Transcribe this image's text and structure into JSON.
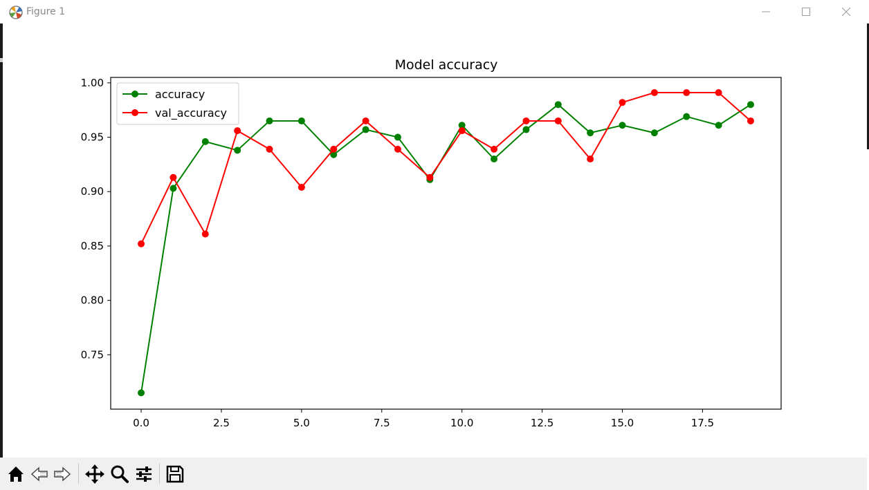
{
  "window": {
    "title": "Figure 1",
    "icons": [
      "app-icon",
      "minimize-icon",
      "maximize-icon",
      "close-icon"
    ]
  },
  "toolbar": {
    "buttons": [
      {
        "name": "home-icon"
      },
      {
        "name": "back-icon"
      },
      {
        "name": "forward-icon"
      },
      {
        "name": "pan-icon"
      },
      {
        "name": "zoom-icon"
      },
      {
        "name": "configure-subplots-icon"
      },
      {
        "name": "save-icon"
      }
    ]
  },
  "chart_data": {
    "type": "line",
    "title": "Model accuracy",
    "xlabel": "",
    "ylabel": "",
    "xlim": [
      -0.95,
      19.95
    ],
    "ylim": [
      0.7,
      1.005
    ],
    "xticks": [
      0.0,
      2.5,
      5.0,
      7.5,
      10.0,
      12.5,
      15.0,
      17.5
    ],
    "xtick_labels": [
      "0.0",
      "2.5",
      "5.0",
      "7.5",
      "10.0",
      "12.5",
      "15.0",
      "17.5"
    ],
    "yticks": [
      0.75,
      0.8,
      0.85,
      0.9,
      0.95,
      1.0
    ],
    "ytick_labels": [
      "0.75",
      "0.80",
      "0.85",
      "0.90",
      "0.95",
      "1.00"
    ],
    "grid": false,
    "legend_position": "top-left",
    "x": [
      0,
      1,
      2,
      3,
      4,
      5,
      6,
      7,
      8,
      9,
      10,
      11,
      12,
      13,
      14,
      15,
      16,
      17,
      18,
      19
    ],
    "series": [
      {
        "name": "accuracy",
        "color": "#008000",
        "marker": "circle",
        "values": [
          0.715,
          0.903,
          0.946,
          0.938,
          0.965,
          0.965,
          0.934,
          0.957,
          0.95,
          0.911,
          0.961,
          0.93,
          0.957,
          0.98,
          0.954,
          0.961,
          0.954,
          0.969,
          0.961,
          0.98
        ]
      },
      {
        "name": "val_accuracy",
        "color": "#ff0000",
        "marker": "circle",
        "values": [
          0.852,
          0.913,
          0.861,
          0.956,
          0.939,
          0.904,
          0.939,
          0.965,
          0.939,
          0.913,
          0.956,
          0.939,
          0.965,
          0.965,
          0.93,
          0.982,
          0.991,
          0.991,
          0.991,
          0.965
        ]
      }
    ]
  }
}
